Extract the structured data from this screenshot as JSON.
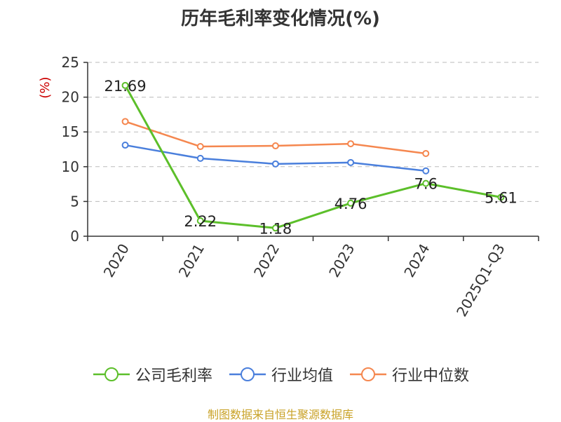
{
  "chart_data": {
    "type": "line",
    "title": "历年毛利率变化情况(%)",
    "ylabel": "(%)",
    "xlabel": "",
    "categories": [
      "2020",
      "2021",
      "2022",
      "2023",
      "2024",
      "2025Q1-Q3"
    ],
    "ylim": [
      0,
      25
    ],
    "yticks": [
      0,
      5,
      10,
      15,
      20,
      25
    ],
    "grid": true,
    "legend_position": "bottom",
    "series": [
      {
        "name": "公司毛利率",
        "color": "#5cbf2a",
        "values": [
          21.69,
          2.22,
          1.18,
          4.76,
          7.6,
          5.61
        ],
        "labels": [
          "21.69",
          "2.22",
          "1.18",
          "4.76",
          "7.6",
          "5.61"
        ],
        "show_labels": true
      },
      {
        "name": "行业均值",
        "color": "#4a7fdc",
        "values": [
          13.1,
          11.2,
          10.4,
          10.6,
          9.4,
          null
        ],
        "show_labels": false
      },
      {
        "name": "行业中位数",
        "color": "#f5874f",
        "values": [
          16.5,
          12.9,
          13.0,
          13.3,
          11.9,
          null
        ],
        "show_labels": false
      }
    ]
  },
  "source_text": "制图数据来自恒生聚源数据库",
  "colors": {
    "axis": "#333333",
    "grid": "#bbbbbb",
    "ylabel": "#cc0000",
    "source": "#c9a227"
  }
}
